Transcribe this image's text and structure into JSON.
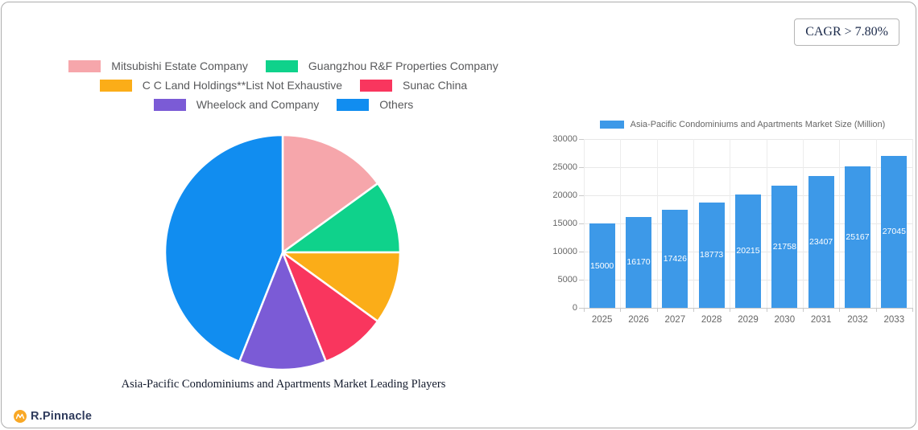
{
  "cagr_badge": "CAGR > 7.80%",
  "logo": {
    "text": "R.Pinnacle",
    "icon_color": "#f9a825"
  },
  "chart_data": [
    {
      "type": "pie",
      "title": "Asia-Pacific Condominiums and Apartments Market Leading Players",
      "labels": [
        "Mitsubishi Estate Company",
        "Guangzhou R&F Properties Company",
        "C C Land Holdings**List Not Exhaustive",
        "Sunac China",
        "Wheelock and Company",
        "Others"
      ],
      "values": [
        15,
        10,
        10,
        9,
        12,
        44
      ],
      "colors": [
        "#f6a6ab",
        "#0fd28b",
        "#fbad18",
        "#f9365e",
        "#7b5bd6",
        "#118df0"
      ],
      "legend_position": "top",
      "legend_rows": [
        [
          0,
          1
        ],
        [
          2,
          3
        ],
        [
          4,
          5
        ]
      ],
      "start_angle_deg": 0,
      "direction": "clockwise"
    },
    {
      "type": "bar",
      "series_label": "Asia-Pacific Condominiums and Apartments Market Size (Million)",
      "categories": [
        "2025",
        "2026",
        "2027",
        "2028",
        "2029",
        "2030",
        "2031",
        "2032",
        "2033"
      ],
      "values": [
        15000,
        16170,
        17426,
        18773,
        20215,
        21758,
        23407,
        25167,
        27045
      ],
      "ylim": [
        0,
        30000
      ],
      "yticks": [
        0,
        5000,
        10000,
        15000,
        20000,
        25000,
        30000
      ],
      "bar_color": "#3d99e8",
      "grid": true,
      "value_labels": "inside-center-white",
      "legend_position": "top"
    }
  ]
}
